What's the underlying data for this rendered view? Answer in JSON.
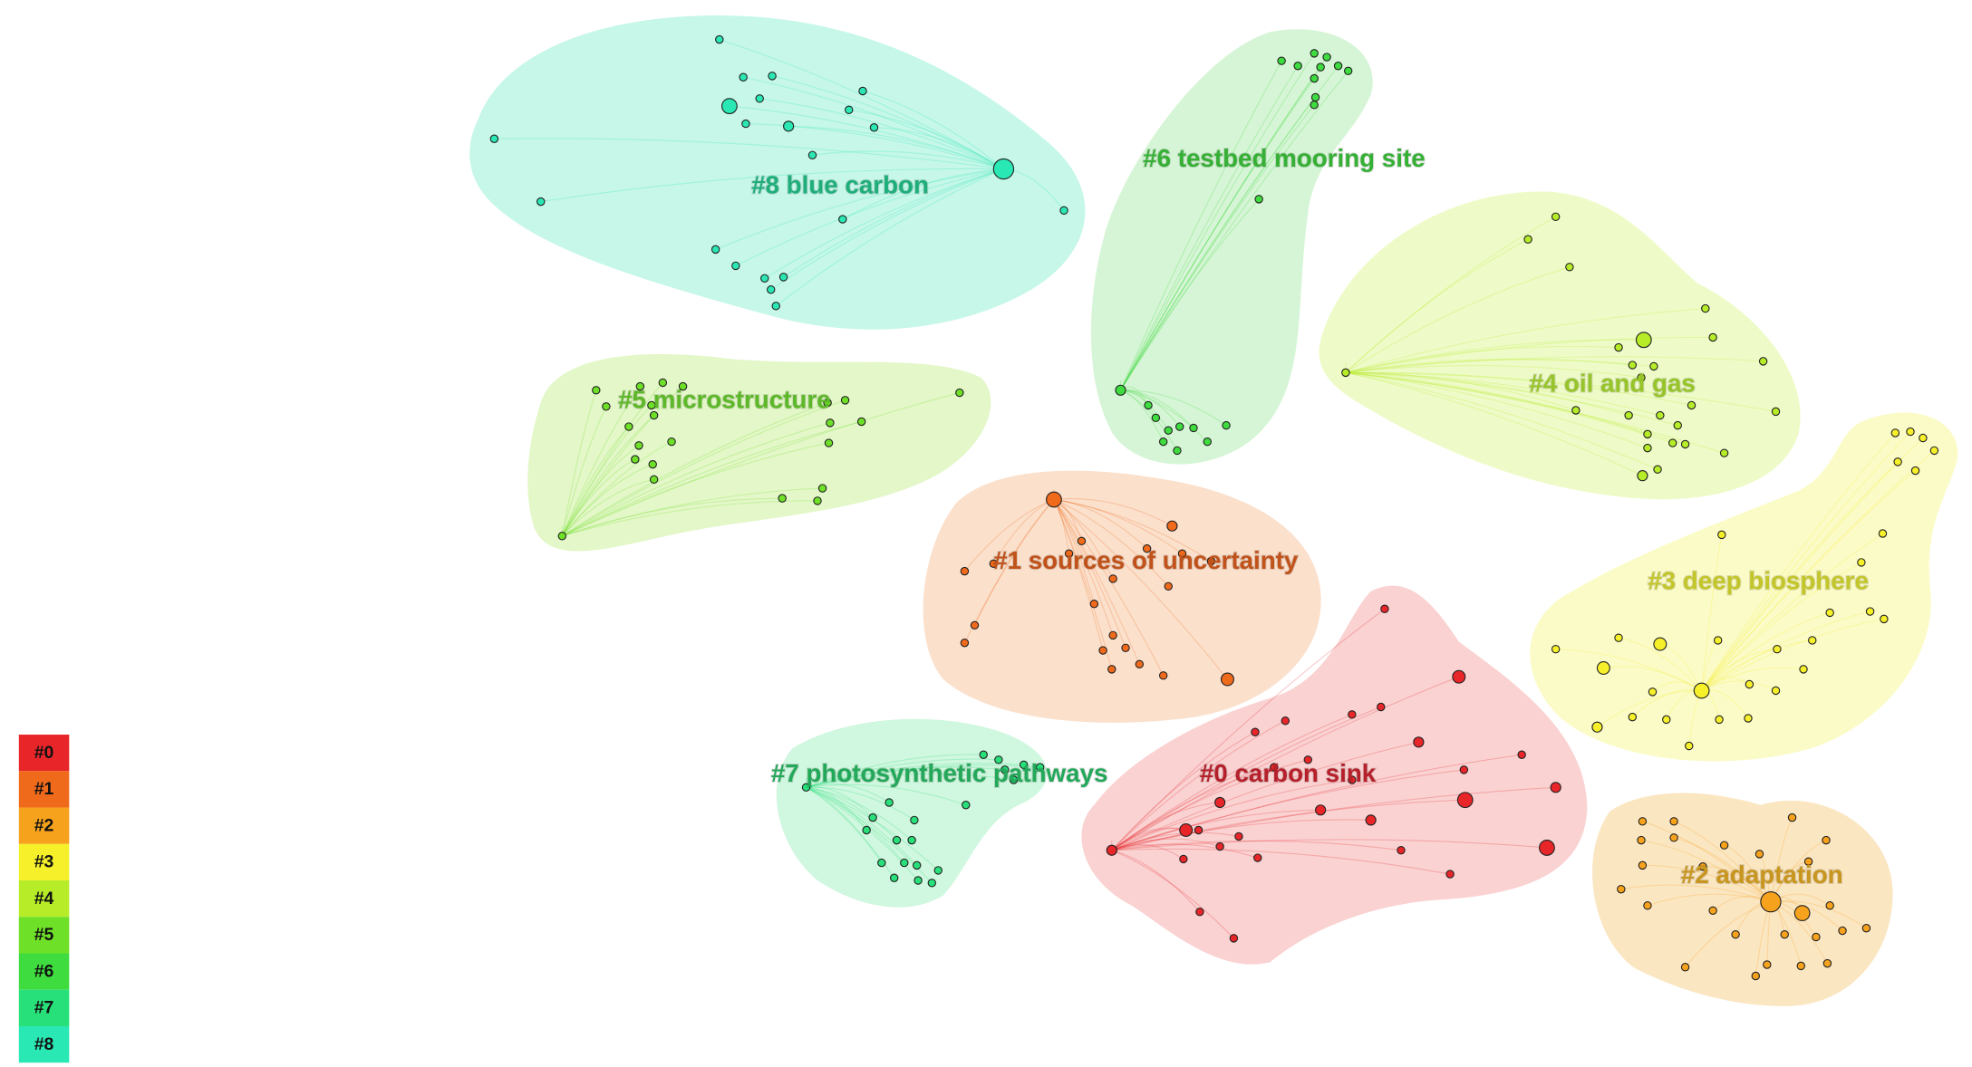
{
  "clusters": [
    {
      "label": "#0 carbon sink"
    },
    {
      "label": "#1 sources of uncertainty"
    },
    {
      "label": "#2 adaptation"
    },
    {
      "label": "#3 deep biosphere"
    },
    {
      "label": "#4 oil and gas"
    },
    {
      "label": "#5 microstructure"
    },
    {
      "label": "#6 testbed mooring site"
    },
    {
      "label": "#7 photosynthetic pathways"
    },
    {
      "label": "#8 blue carbon"
    }
  ],
  "legend": [
    "#0",
    "#1",
    "#2",
    "#3",
    "#4",
    "#5",
    "#6",
    "#7",
    "#8"
  ]
}
